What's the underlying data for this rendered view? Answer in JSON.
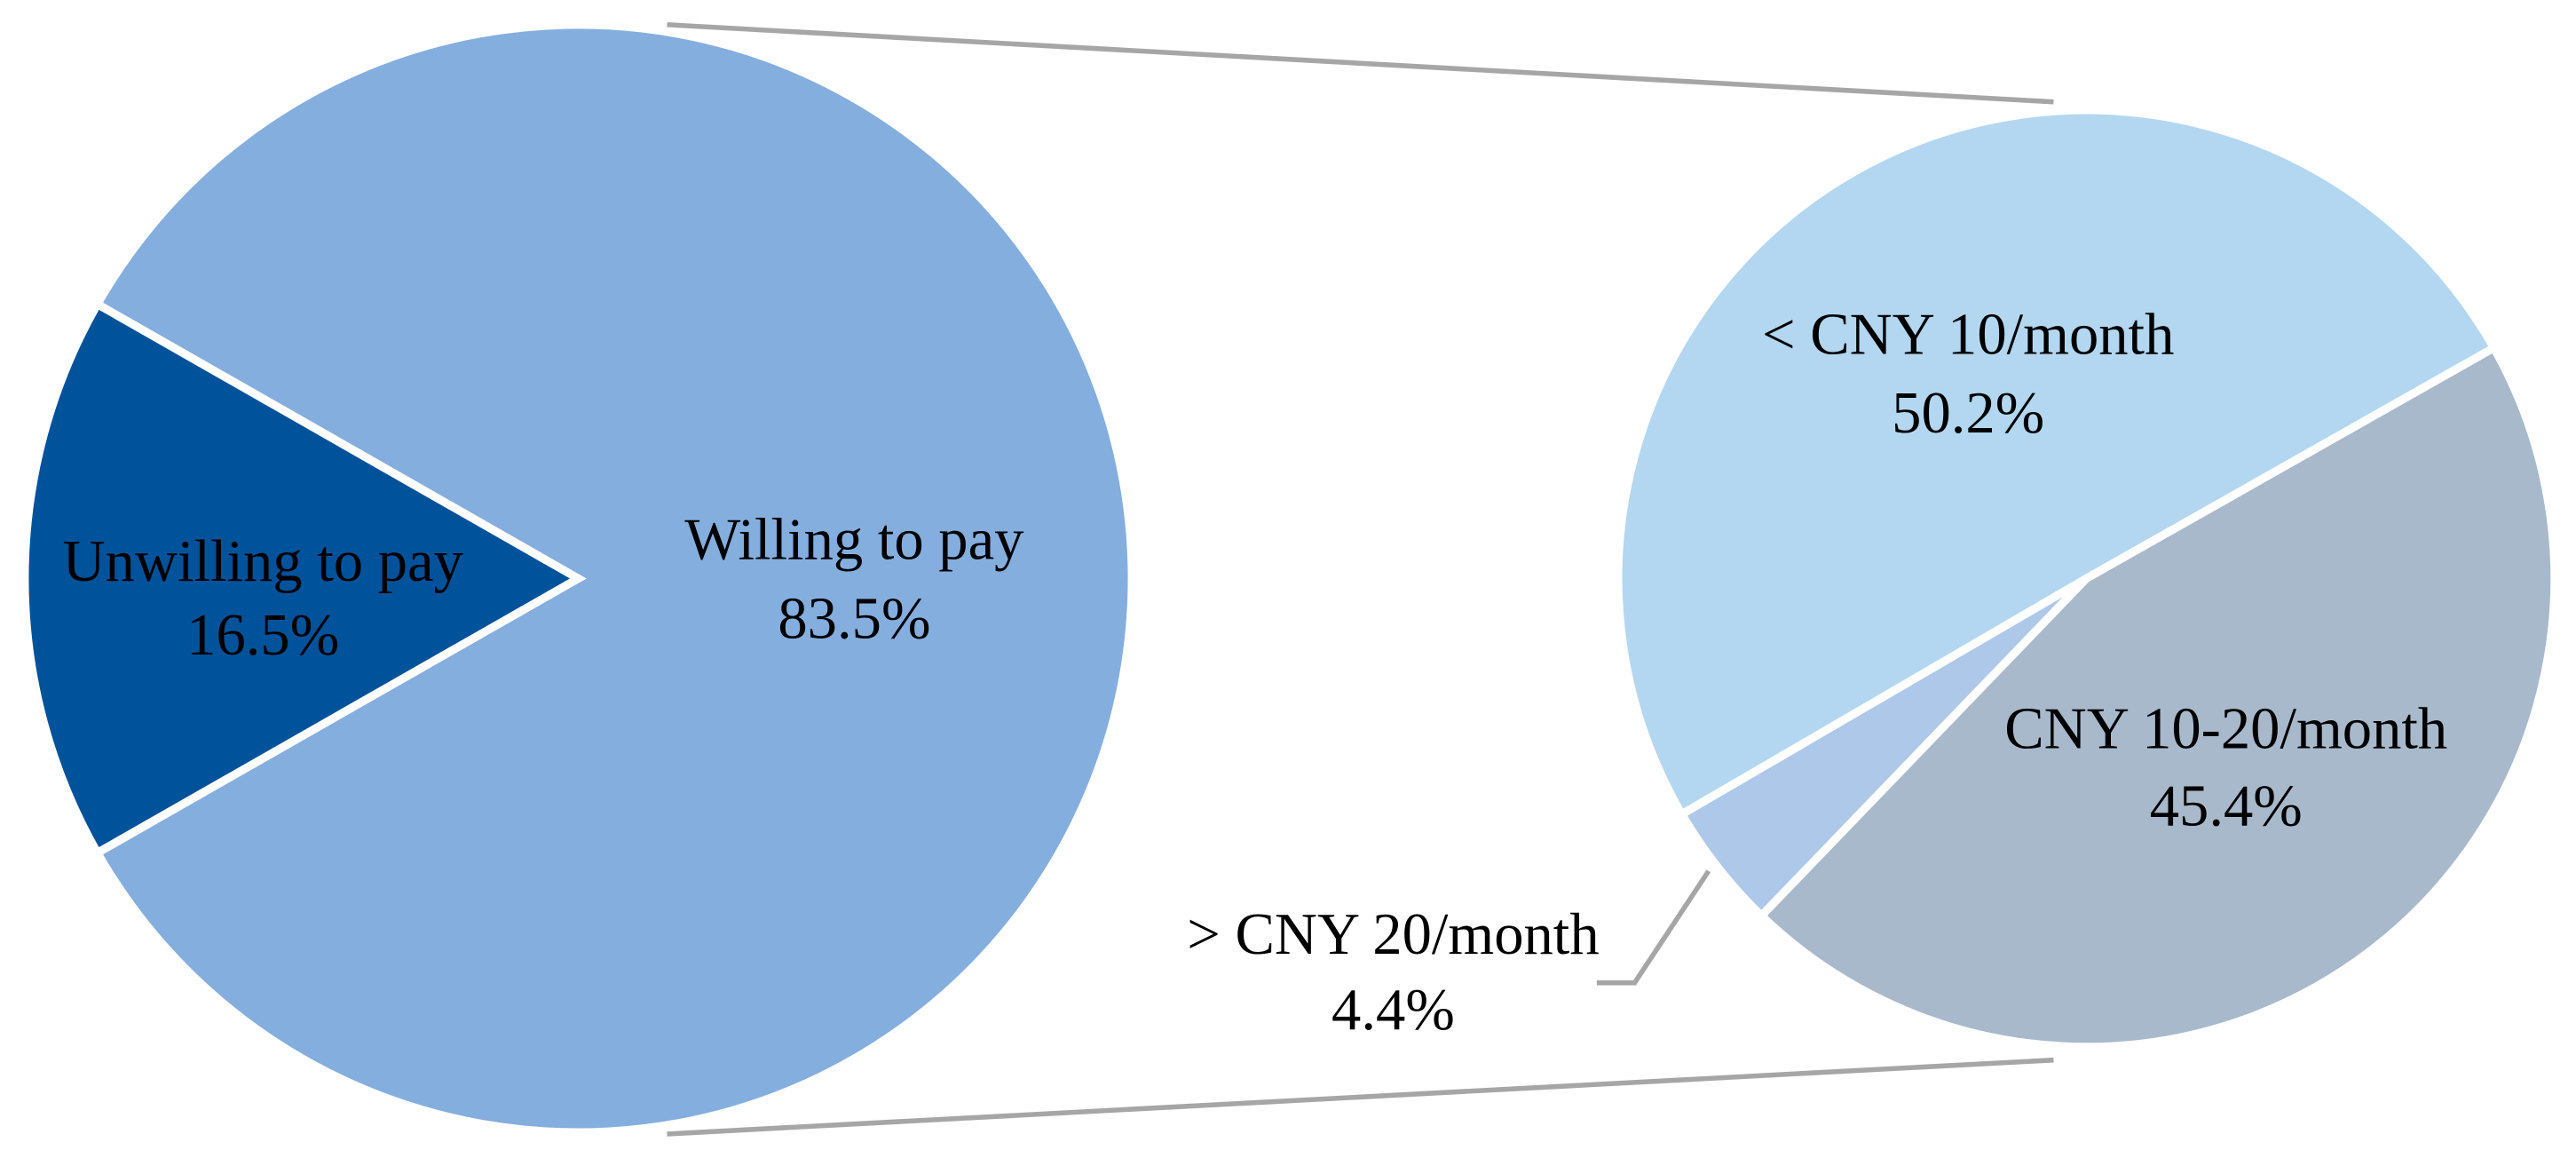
{
  "chart_data": [
    {
      "type": "pie",
      "categories": [
        "Unwilling to pay",
        "Willing to pay"
      ],
      "values": [
        16.5,
        83.5
      ],
      "value_labels": [
        "16.5%",
        "83.5%"
      ],
      "colors": [
        "#00529b",
        "#84aede"
      ]
    },
    {
      "type": "pie",
      "categories": [
        "< CNY 10/month",
        "CNY 10-20/month",
        "> CNY 20/month"
      ],
      "values": [
        50.2,
        45.4,
        4.4
      ],
      "value_labels": [
        "50.2%",
        "45.4%",
        "4.4%"
      ],
      "colors": [
        "#b3d7f0",
        "#a8b9cc",
        "#aec8ea"
      ]
    }
  ]
}
